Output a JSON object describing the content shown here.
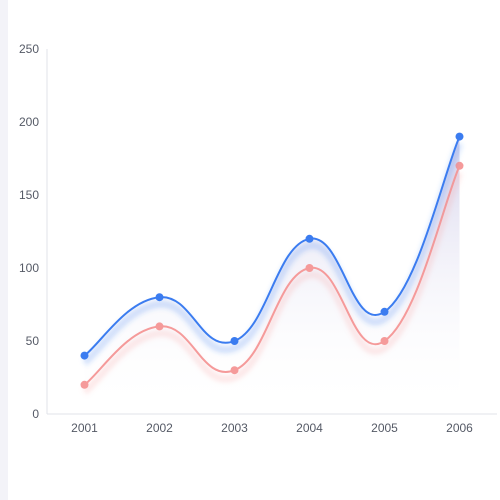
{
  "chart_data": {
    "type": "line",
    "categories": [
      "2001",
      "2002",
      "2003",
      "2004",
      "2005",
      "2006"
    ],
    "series": [
      {
        "values": [
          40,
          80,
          50,
          120,
          70,
          190
        ],
        "color": "#3b7cf0"
      },
      {
        "values": [
          20,
          60,
          30,
          100,
          50,
          170
        ],
        "color": "#f59a9a"
      }
    ],
    "y_ticks": [
      "0",
      "50",
      "100",
      "150",
      "200",
      "250"
    ],
    "ylim": [
      0,
      250
    ],
    "grid": false,
    "smooth": true,
    "area_fill": true,
    "title": "",
    "xlabel": "",
    "ylabel": ""
  }
}
